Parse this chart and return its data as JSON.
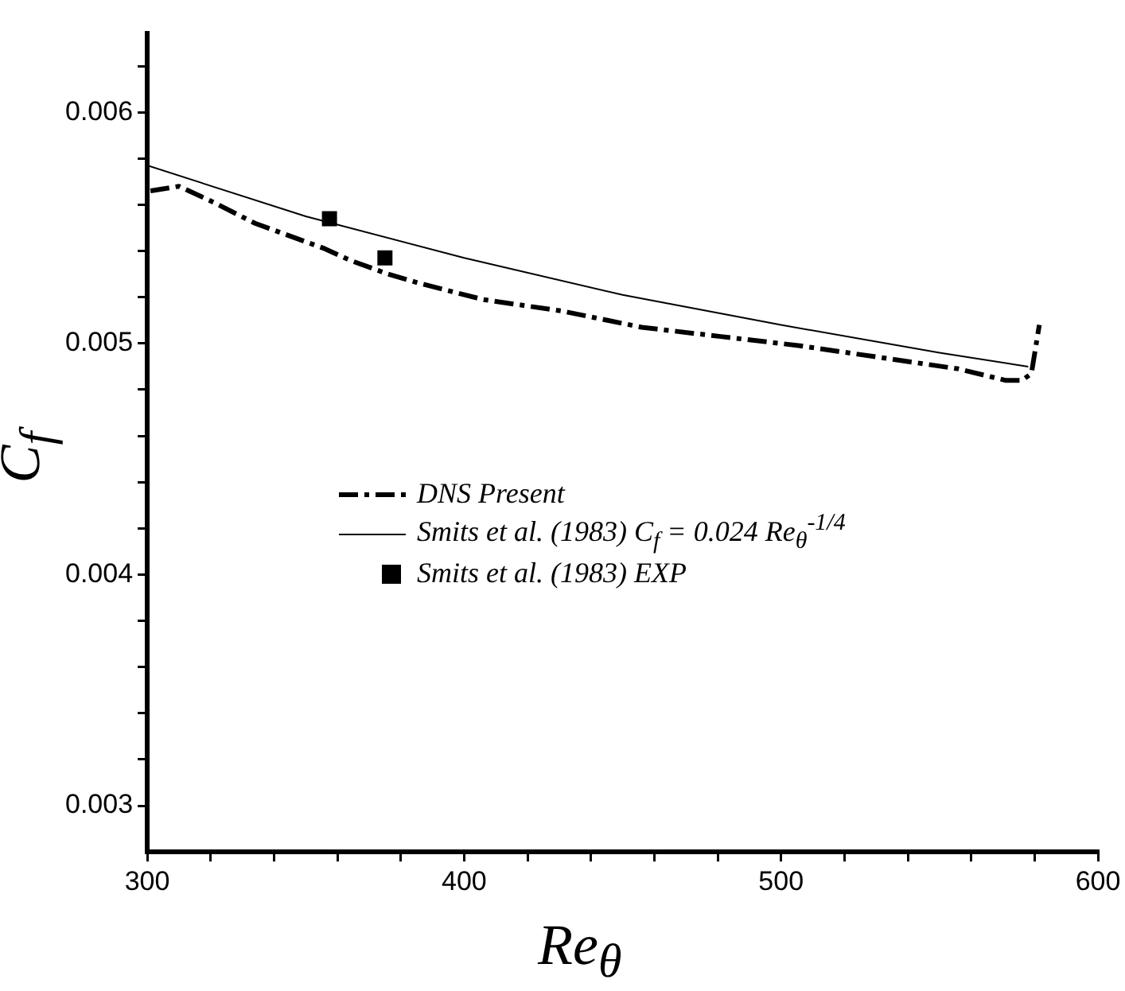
{
  "chart_data": {
    "type": "line",
    "xlabel": "Re$_{θ}$",
    "ylabel": "C$_{f}$",
    "xlim": [
      300,
      600
    ],
    "ylim": [
      0.0028,
      0.00634
    ],
    "xticks": [
      300,
      {
        "value": 320,
        "label": null
      },
      {
        "value": 340,
        "label": null
      },
      {
        "value": 360,
        "label": null
      },
      {
        "value": 380,
        "label": null
      },
      400,
      {
        "value": 420,
        "label": null
      },
      {
        "value": 440,
        "label": null
      },
      {
        "value": 460,
        "label": null
      },
      {
        "value": 480,
        "label": null
      },
      500,
      {
        "value": 520,
        "label": null
      },
      {
        "value": 540,
        "label": null
      },
      {
        "value": 560,
        "label": null
      },
      {
        "value": 580,
        "label": null
      },
      600
    ],
    "yticks": [
      0.003,
      {
        "value": 0.0032,
        "label": null
      },
      {
        "value": 0.0034,
        "label": null
      },
      {
        "value": 0.0036,
        "label": null
      },
      {
        "value": 0.0038,
        "label": null
      },
      0.004,
      {
        "value": 0.0042,
        "label": null
      },
      {
        "value": 0.0044,
        "label": null
      },
      {
        "value": 0.0046,
        "label": null
      },
      {
        "value": 0.0048,
        "label": null
      },
      0.005,
      {
        "value": 0.0052,
        "label": null
      },
      {
        "value": 0.0054,
        "label": null
      },
      {
        "value": 0.0056,
        "label": null
      },
      {
        "value": 0.0058,
        "label": null
      },
      0.006,
      {
        "value": 0.0062,
        "label": null
      }
    ],
    "grid": false,
    "legend": "bottom left",
    "series": [
      {
        "name": "DNS Present",
        "type": "line",
        "color": "#000000",
        "line_style": "dashed",
        "marker": "none",
        "x": [
          301,
          310,
          321,
          334,
          356,
          364,
          376,
          386,
          406,
          431,
          456,
          481,
          506,
          531,
          556,
          571,
          576,
          579,
          581.5
        ],
        "values": [
          0.00566,
          0.00568,
          0.00561,
          0.00552,
          0.00541,
          0.00536,
          0.0053,
          0.00526,
          0.00519,
          0.00514,
          0.00507,
          0.00503,
          0.00499,
          0.00494,
          0.00489,
          0.00484,
          0.00484,
          0.00487,
          0.00508
        ]
      },
      {
        "name": "Smits et al. (1983) C$_{f}$ = 0.024 Re$_{θ}$$^{-1/4}$",
        "type": "line",
        "color": "#000000",
        "line_style": "solid",
        "marker": "none",
        "x": [
          300,
          350,
          400,
          450,
          500,
          550,
          578
        ],
        "values": [
          0.00577,
          0.00555,
          0.00537,
          0.00521,
          0.00508,
          0.00496,
          0.0049
        ]
      },
      {
        "name": "Smits et al. (1983) EXP",
        "type": "scatter",
        "color": "#000000",
        "marker": "square",
        "x": [
          357.5,
          375
        ],
        "values": [
          0.00554,
          0.00537
        ]
      }
    ]
  }
}
